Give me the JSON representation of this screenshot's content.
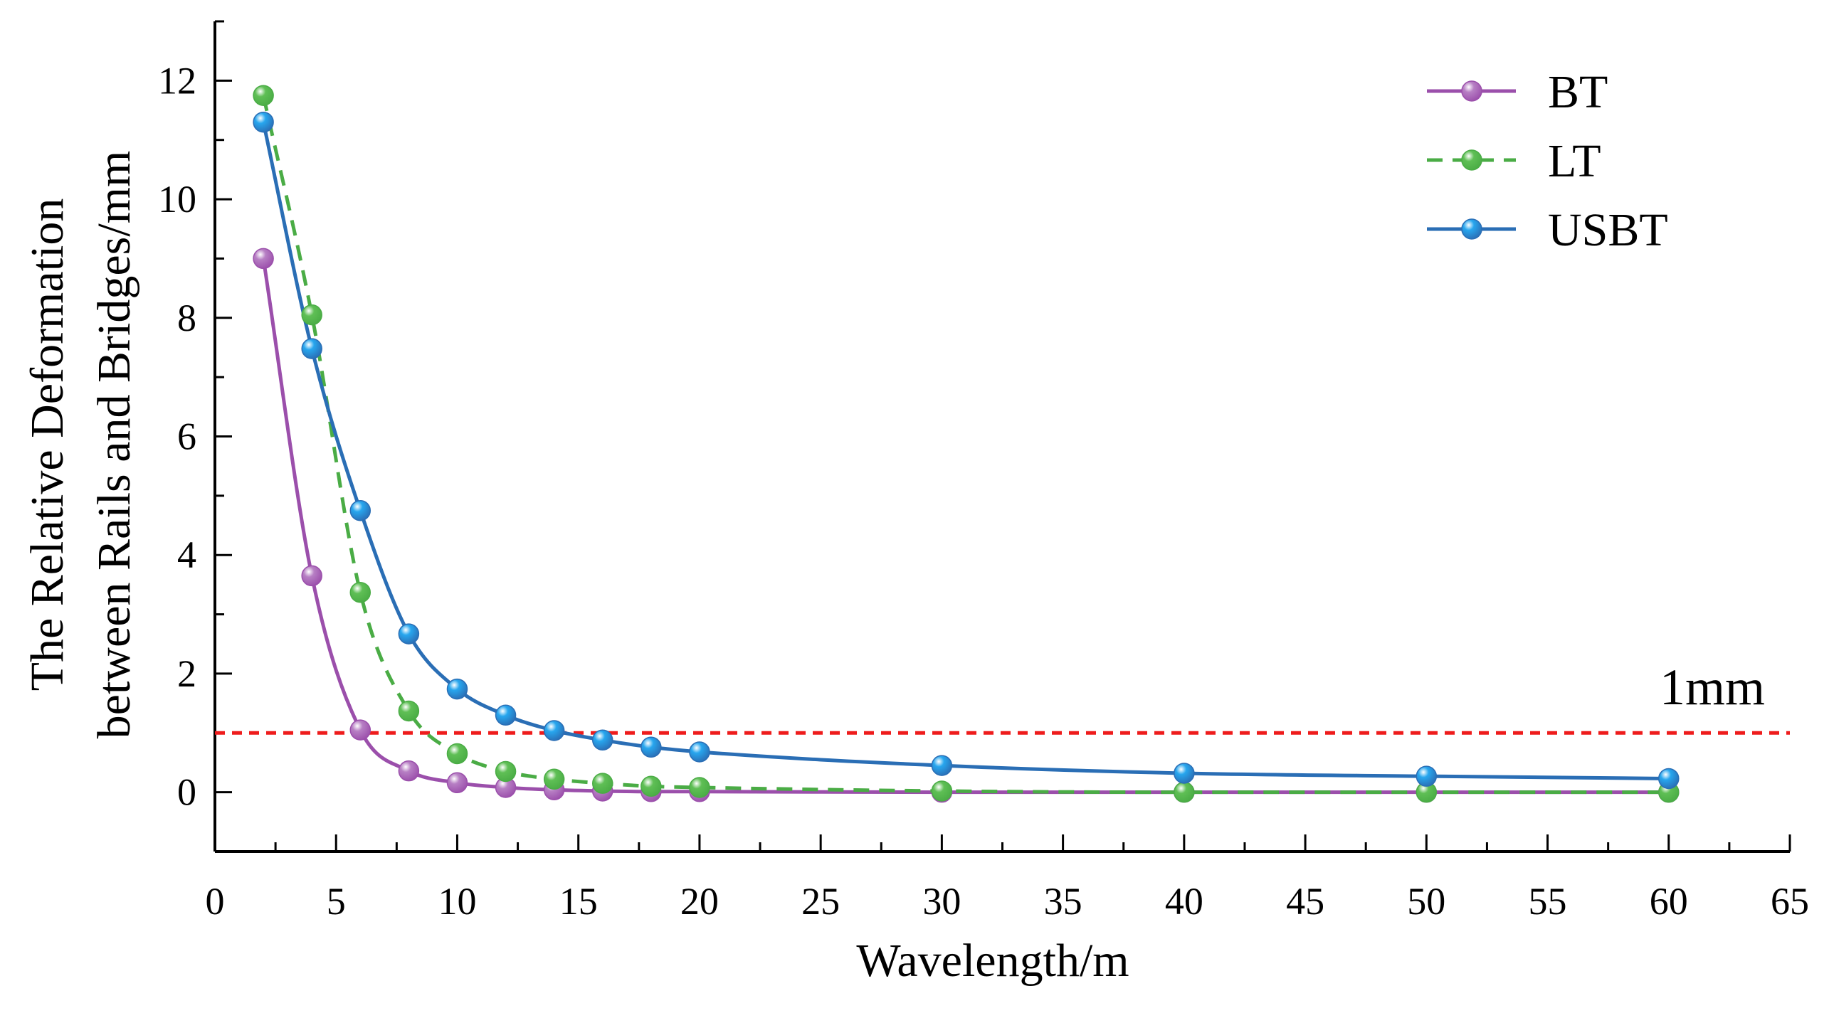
{
  "chart_data": {
    "type": "line",
    "title": "",
    "xlabel": "Wavelength/m",
    "ylabel_line1": "The Relative Deformation",
    "ylabel_line2": "between Rails and Bridges/mm",
    "xlim": [
      0,
      65
    ],
    "ylim": [
      -1,
      13
    ],
    "x_ticks": [
      0,
      5,
      10,
      15,
      20,
      25,
      30,
      35,
      40,
      45,
      50,
      55,
      60,
      65
    ],
    "y_ticks": [
      0,
      2,
      4,
      6,
      8,
      10,
      12
    ],
    "x": [
      2,
      4,
      6,
      8,
      10,
      12,
      14,
      16,
      18,
      20,
      30,
      40,
      50,
      60
    ],
    "series": [
      {
        "name": "BT",
        "color": "#9b4fab",
        "marker_color": "#b77fc4",
        "dashed": false,
        "values": [
          9.0,
          3.65,
          1.05,
          0.36,
          0.16,
          0.08,
          0.04,
          0.02,
          0.01,
          0.01,
          0.0,
          0.0,
          0.0,
          0.0
        ]
      },
      {
        "name": "LT",
        "color": "#4aac45",
        "marker_color": "#5fbf55",
        "dashed": true,
        "values": [
          11.75,
          8.05,
          3.37,
          1.37,
          0.65,
          0.35,
          0.22,
          0.15,
          0.1,
          0.08,
          0.02,
          0.0,
          0.0,
          0.0
        ]
      },
      {
        "name": "USBT",
        "color": "#2a6eb5",
        "marker_color": "#27a6ee",
        "dashed": false,
        "values": [
          11.3,
          7.48,
          4.75,
          2.67,
          1.74,
          1.3,
          1.04,
          0.88,
          0.76,
          0.68,
          0.45,
          0.32,
          0.27,
          0.23
        ]
      }
    ],
    "reference_line": {
      "y": 1,
      "label": "1mm",
      "color": "#ee1c1c"
    },
    "legend_position": "top-right"
  }
}
